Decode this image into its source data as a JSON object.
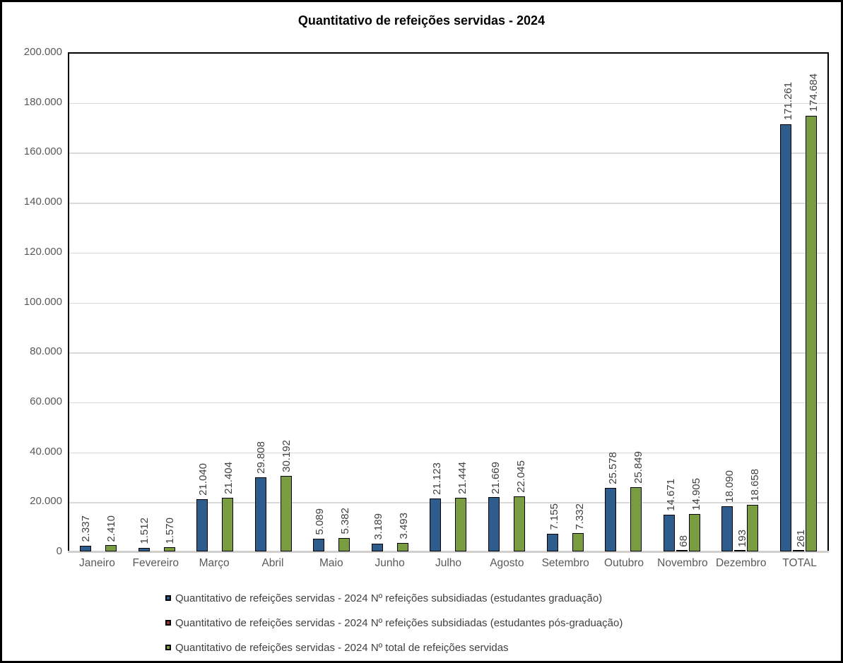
{
  "title": "Quantitativo de refeições servidas - 2024",
  "chart_data": {
    "type": "bar",
    "title": "Quantitativo de refeições servidas - 2024",
    "categories": [
      "Janeiro",
      "Fevereiro",
      "Março",
      "Abril",
      "Maio",
      "Junho",
      "Julho",
      "Agosto",
      "Setembro",
      "Outubro",
      "Novembro",
      "Dezembro",
      "TOTAL"
    ],
    "series": [
      {
        "name": "Quantitativo de refeições servidas - 2024 Nº refeições subsidiadas (estudantes graduação)",
        "color": "#2e5c8c",
        "values": [
          2337,
          1512,
          21040,
          29808,
          5089,
          3189,
          21123,
          21669,
          7155,
          25578,
          14671,
          18090,
          171261
        ],
        "labels": [
          "2.337",
          "1.512",
          "21.040",
          "29.808",
          "5.089",
          "3.189",
          "21.123",
          "21.669",
          "7.155",
          "25.578",
          "14.671",
          "18.090",
          "171.261"
        ]
      },
      {
        "name": "Quantitativo de refeições servidas - 2024 Nº refeições subsidiadas (estudantes pós-graduação)",
        "color": "#963634",
        "values": [
          null,
          null,
          null,
          null,
          null,
          null,
          null,
          null,
          null,
          null,
          68,
          193,
          261
        ],
        "labels": [
          null,
          null,
          null,
          null,
          null,
          null,
          null,
          null,
          null,
          null,
          "68",
          "193",
          "261"
        ]
      },
      {
        "name": "Quantitativo de refeições servidas - 2024 Nº total de refeições servidas",
        "color": "#7a9d41",
        "values": [
          2410,
          1570,
          21404,
          30192,
          5382,
          3493,
          21444,
          22045,
          7332,
          25849,
          14905,
          18658,
          174684
        ],
        "labels": [
          "2.410",
          "1.570",
          "21.404",
          "30.192",
          "5.382",
          "3.493",
          "21.444",
          "22.045",
          "7.332",
          "25.849",
          "14.905",
          "18.658",
          "174.684"
        ]
      }
    ],
    "xlabel": "",
    "ylabel": "",
    "ylim": [
      0,
      200000
    ],
    "y_tick_labels": [
      "200.000",
      "180.000",
      "160.000",
      "140.000",
      "120.000",
      "100.000",
      "80.000",
      "60.000",
      "40.000",
      "20.000",
      "0"
    ],
    "grid": true,
    "legend_position": "bottom",
    "bar_label_rotation": "vertical",
    "colors": {
      "gridline": "#d9d9d9",
      "axis_text": "#595959",
      "data_label_text": "#404040",
      "bar_border": "#000000",
      "baseline": "#d2cfcf"
    }
  }
}
